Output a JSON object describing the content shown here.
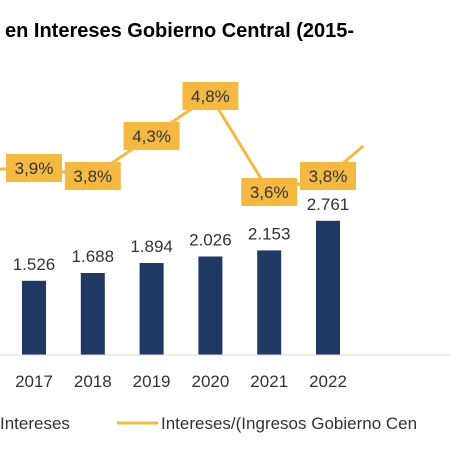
{
  "colors": {
    "bar": "#1f3864",
    "line": "#f4b942",
    "label_box": "#f4b942",
    "axis": "#d9d9d9"
  },
  "chart_data": {
    "type": "bar",
    "title": "en Intereses Gobierno Central (2015-",
    "categories": [
      "2017",
      "2018",
      "2019",
      "2020",
      "2021",
      "2022"
    ],
    "series": [
      {
        "name": "Intereses",
        "kind": "bar",
        "values": [
          1526,
          1688,
          1894,
          2026,
          2153,
          2761
        ],
        "labels": [
          "1.526",
          "1.688",
          "1.894",
          "2.026",
          "2.153",
          "2.761"
        ]
      },
      {
        "name": "Intereses/(Ingresos Gobierno Cen",
        "kind": "line",
        "values": [
          3.9,
          3.8,
          4.3,
          4.8,
          3.6,
          3.8
        ],
        "labels": [
          "3,9%",
          "3,8%",
          "4,3%",
          "4,8%",
          "3,6%",
          "3,8%"
        ]
      }
    ],
    "legend": {
      "position": "bottom",
      "entries": [
        "Intereses",
        "Intereses/(Ingresos Gobierno Cen"
      ]
    },
    "grid": false
  }
}
